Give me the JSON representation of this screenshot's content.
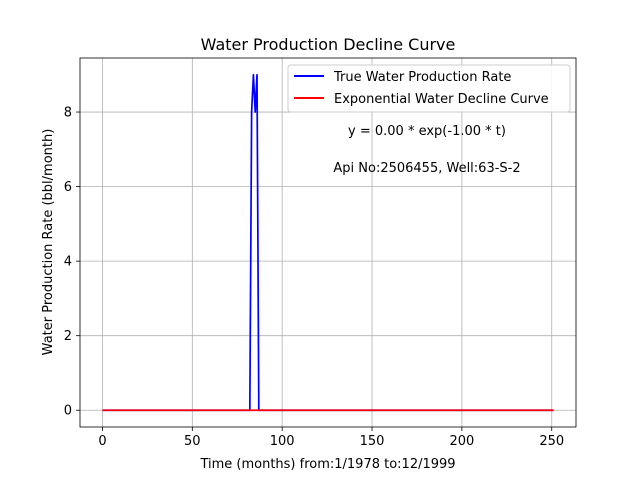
{
  "chart_data": {
    "type": "line",
    "title": "Water Production Decline Curve",
    "xlabel": "Time (months) from:1/1978 to:12/1999",
    "ylabel": "Water Production Rate (bbl/month)",
    "xlim": [
      -12.5,
      263.5
    ],
    "ylim": [
      -0.45,
      9.45
    ],
    "xticks": [
      0,
      50,
      100,
      150,
      200,
      250
    ],
    "yticks": [
      0,
      2,
      4,
      6,
      8
    ],
    "grid": true,
    "legend_position": "top-right",
    "series": [
      {
        "name": "True Water Production Rate",
        "color": "#0000ff",
        "x": [
          0,
          82,
          83,
          84,
          85,
          86,
          87,
          88,
          251
        ],
        "y": [
          0,
          0,
          8,
          9,
          8,
          9,
          0,
          0,
          0
        ]
      },
      {
        "name": "Exponential Water Decline Curve",
        "color": "#ff0000",
        "x": [
          0,
          251
        ],
        "y": [
          0,
          0
        ]
      }
    ],
    "annotations": [
      {
        "text": "y = 0.00 * exp(-1.00 * t)"
      },
      {
        "text": "Api No:2506455, Well:63-S-2"
      }
    ]
  }
}
